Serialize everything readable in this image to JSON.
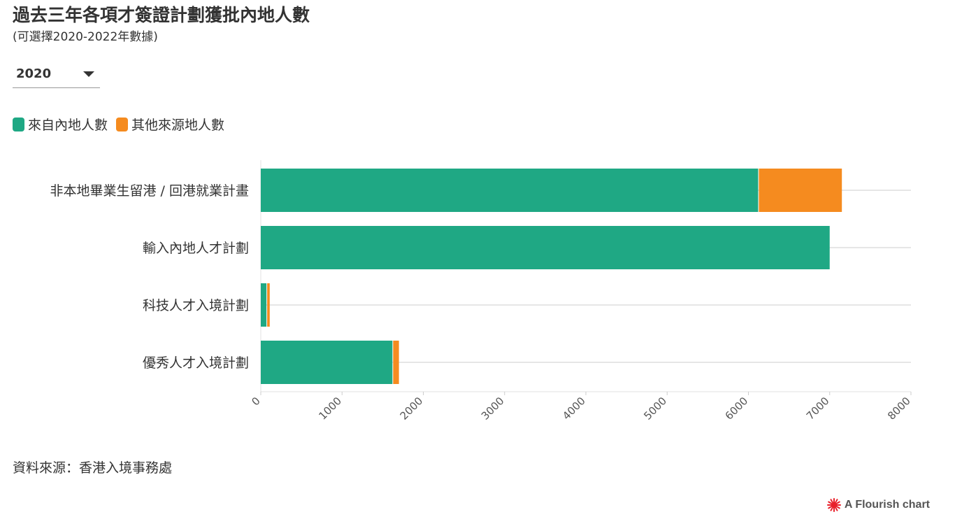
{
  "header": {
    "title": "過去三年各項才簽證計劃獲批內地人數",
    "subtitle": "(可選擇2020-2022年數據)"
  },
  "controls": {
    "year_selected": "2020"
  },
  "legend": {
    "items": [
      {
        "label": "來自內地人數",
        "color": "#1fa884"
      },
      {
        "label": "其他來源地人數",
        "color": "#f58b1f"
      }
    ]
  },
  "chart_data": {
    "type": "bar",
    "orientation": "horizontal",
    "stacked": true,
    "categories": [
      "非本地畢業生留港 / 回港就業計畫",
      "輸入內地人才計劃",
      "科技人才入境計劃",
      "優秀人才入境計劃"
    ],
    "series": [
      {
        "name": "來自內地人數",
        "color": "#1fa884",
        "values": [
          6120,
          7000,
          70,
          1620
        ]
      },
      {
        "name": "其他來源地人數",
        "color": "#f58b1f",
        "values": [
          1030,
          0,
          40,
          80
        ]
      }
    ],
    "xlim": [
      0,
      8000
    ],
    "xticks": [
      0,
      1000,
      2000,
      3000,
      4000,
      5000,
      6000,
      7000,
      8000
    ],
    "grid": true,
    "legend_position": "top-left"
  },
  "footer": {
    "source": "資料來源：香港入境事務處",
    "credit": "A Flourish chart",
    "credit_icon_color": "#e8202a"
  }
}
